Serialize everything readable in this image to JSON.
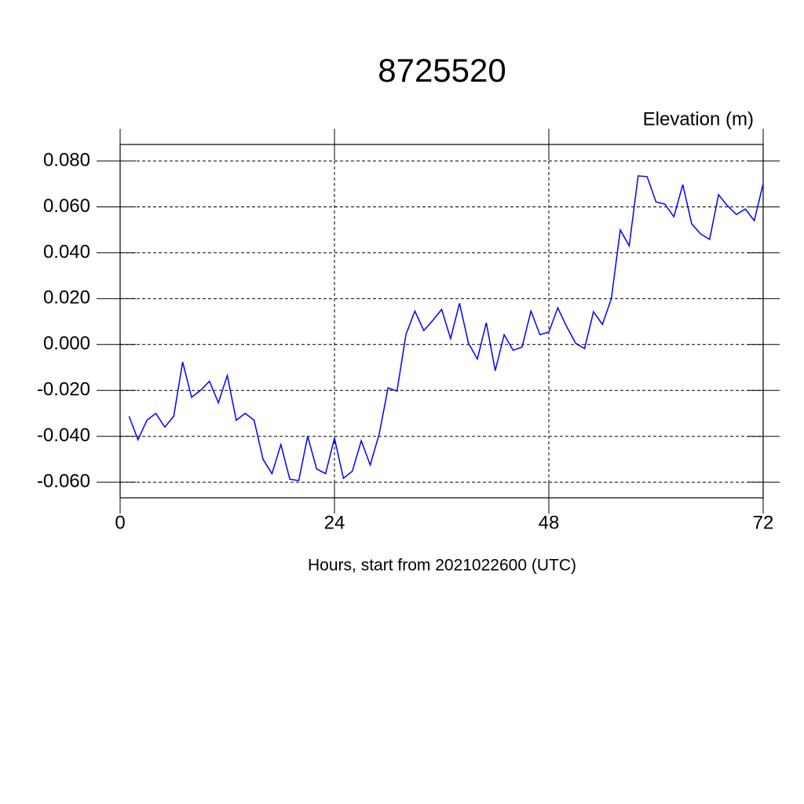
{
  "chart_data": {
    "type": "line",
    "title": "8725520",
    "subtitle": "Elevation (m)",
    "x_label": "Hours, start from 2021022600 (UTC)",
    "x": [
      1,
      2,
      3,
      4,
      5,
      6,
      7,
      8,
      9,
      10,
      11,
      12,
      13,
      14,
      15,
      16,
      17,
      18,
      19,
      20,
      21,
      22,
      23,
      24,
      25,
      26,
      27,
      28,
      29,
      30,
      31,
      32,
      33,
      34,
      35,
      36,
      37,
      38,
      39,
      40,
      41,
      42,
      43,
      44,
      45,
      46,
      47,
      48,
      49,
      50,
      51,
      52,
      53,
      54,
      55,
      56,
      57,
      58,
      59,
      60,
      61,
      62,
      63,
      64,
      65,
      66,
      67,
      68,
      69,
      70,
      71,
      72
    ],
    "series": [
      {
        "color": "#0000ff",
        "values": [
          -0.0313,
          -0.0415,
          -0.033,
          -0.03,
          -0.036,
          -0.0313,
          -0.0076,
          -0.023,
          -0.02,
          -0.016,
          -0.0254,
          -0.0135,
          -0.033,
          -0.03,
          -0.033,
          -0.05,
          -0.0563,
          -0.0436,
          -0.0587,
          -0.0593,
          -0.04,
          -0.0542,
          -0.0563,
          -0.0408,
          -0.0583,
          -0.0552,
          -0.0419,
          -0.0525,
          -0.0391,
          -0.0189,
          -0.0203,
          0.0043,
          0.0146,
          0.0061,
          0.0105,
          0.0153,
          0.0026,
          0.018,
          0.0006,
          -0.0063,
          0.0095,
          -0.0114,
          0.0043,
          -0.0025,
          -0.0011,
          0.0146,
          0.0043,
          0.0054,
          0.016,
          0.0078,
          0.0006,
          -0.0018,
          0.0143,
          0.0088,
          0.02,
          0.0499,
          0.043,
          0.0735,
          0.0732,
          0.0622,
          0.0612,
          0.0557,
          0.0697,
          0.0526,
          0.0482,
          0.0458,
          0.0653,
          0.0605,
          0.0567,
          0.0591,
          0.054,
          0.0701
        ]
      }
    ],
    "xlim": [
      0,
      72
    ],
    "xticks": [
      0,
      24,
      48,
      72
    ],
    "ylim": [
      -0.0668,
      0.0872
    ],
    "yticks": [
      {
        "value": -0.06,
        "label": "-0.060"
      },
      {
        "value": -0.04,
        "label": "-0.040"
      },
      {
        "value": -0.02,
        "label": "-0.020"
      },
      {
        "value": 0,
        "label": "0.000"
      },
      {
        "value": 0.02,
        "label": "0.020"
      },
      {
        "value": 0.04,
        "label": "0.040"
      },
      {
        "value": 0.06,
        "label": "0.060"
      },
      {
        "value": 0.08,
        "label": "0.080"
      }
    ],
    "grid": true
  }
}
